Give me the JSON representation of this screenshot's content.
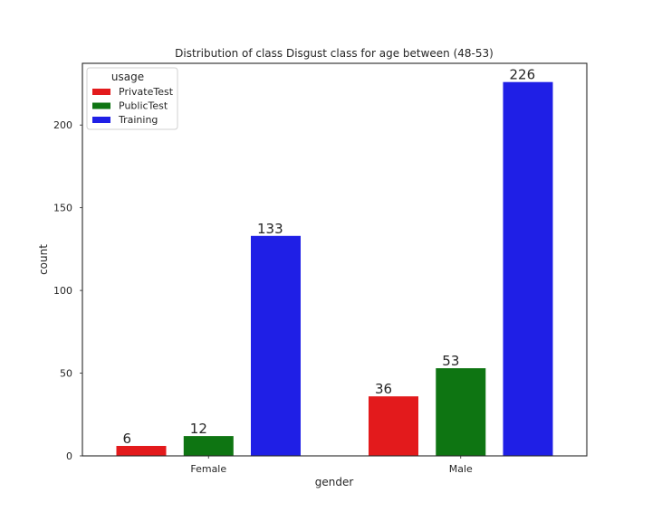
{
  "chart_data": {
    "type": "bar",
    "title": "Distribution of class Disgust class for age between (48-53)",
    "xlabel": "gender",
    "ylabel": "count",
    "categories": [
      "Female",
      "Male"
    ],
    "series": [
      {
        "name": "PrivateTest",
        "color": "#e31a1c",
        "values": [
          6,
          36
        ]
      },
      {
        "name": "PublicTest",
        "color": "#0e7512",
        "values": [
          12,
          53
        ]
      },
      {
        "name": "Training",
        "color": "#1f1fe6",
        "values": [
          133,
          226
        ]
      }
    ],
    "ylim": [
      0,
      237.3
    ],
    "yticks": [
      0,
      50,
      100,
      150,
      200
    ],
    "legend": {
      "title": "usage",
      "placement": "top-left"
    },
    "grid": false
  }
}
